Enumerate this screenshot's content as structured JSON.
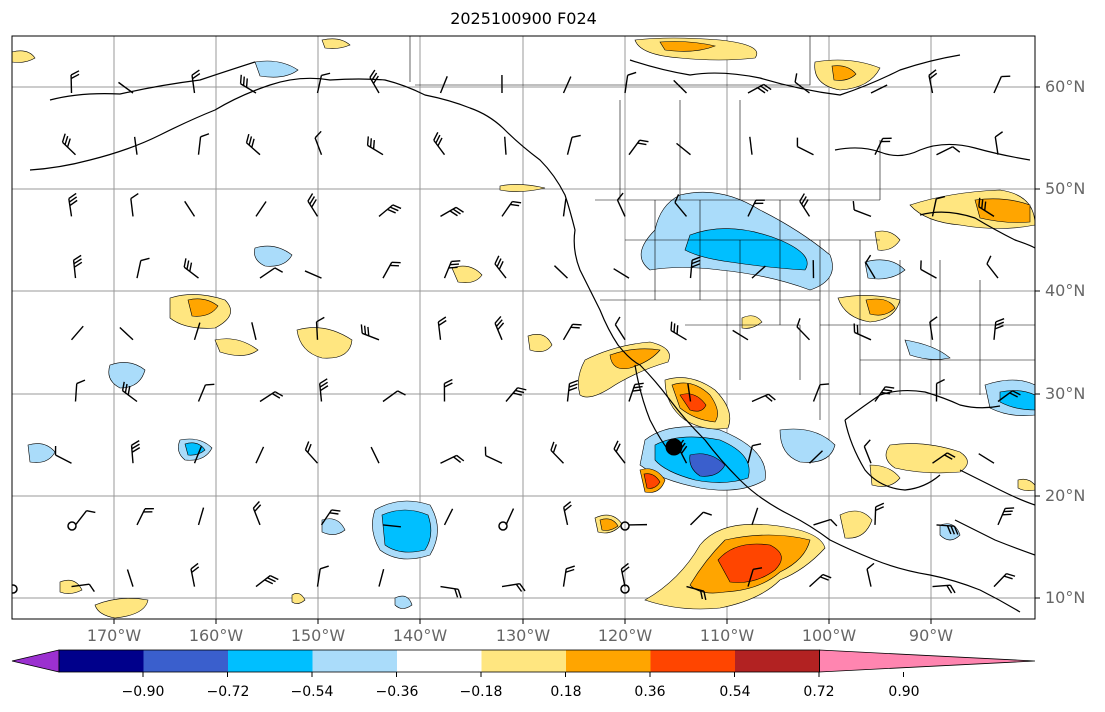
{
  "title": "2025100900 F024",
  "lat_labels": [
    "60°N",
    "50°N",
    "40°N",
    "30°N",
    "20°N",
    "10°N"
  ],
  "lon_labels": [
    "170°W",
    "160°W",
    "150°W",
    "140°W",
    "130°W",
    "120°W",
    "110°W",
    "100°W",
    "90°W"
  ],
  "colorbar": {
    "ticks": [
      "−0.90",
      "−0.72",
      "−0.54",
      "−0.36",
      "−0.18",
      "0.18",
      "0.36",
      "0.54",
      "0.72",
      "0.90"
    ],
    "colors": [
      "#9b30d0",
      "#00008b",
      "#3a5fcd",
      "#00bfff",
      "#aadcfa",
      "#ffffff",
      "#ffe680",
      "#ffa500",
      "#ff4500",
      "#b22222",
      "#ff85b0"
    ]
  },
  "colors": {
    "grid": "#999999",
    "coast": "#000000",
    "marker": "#000000"
  }
}
